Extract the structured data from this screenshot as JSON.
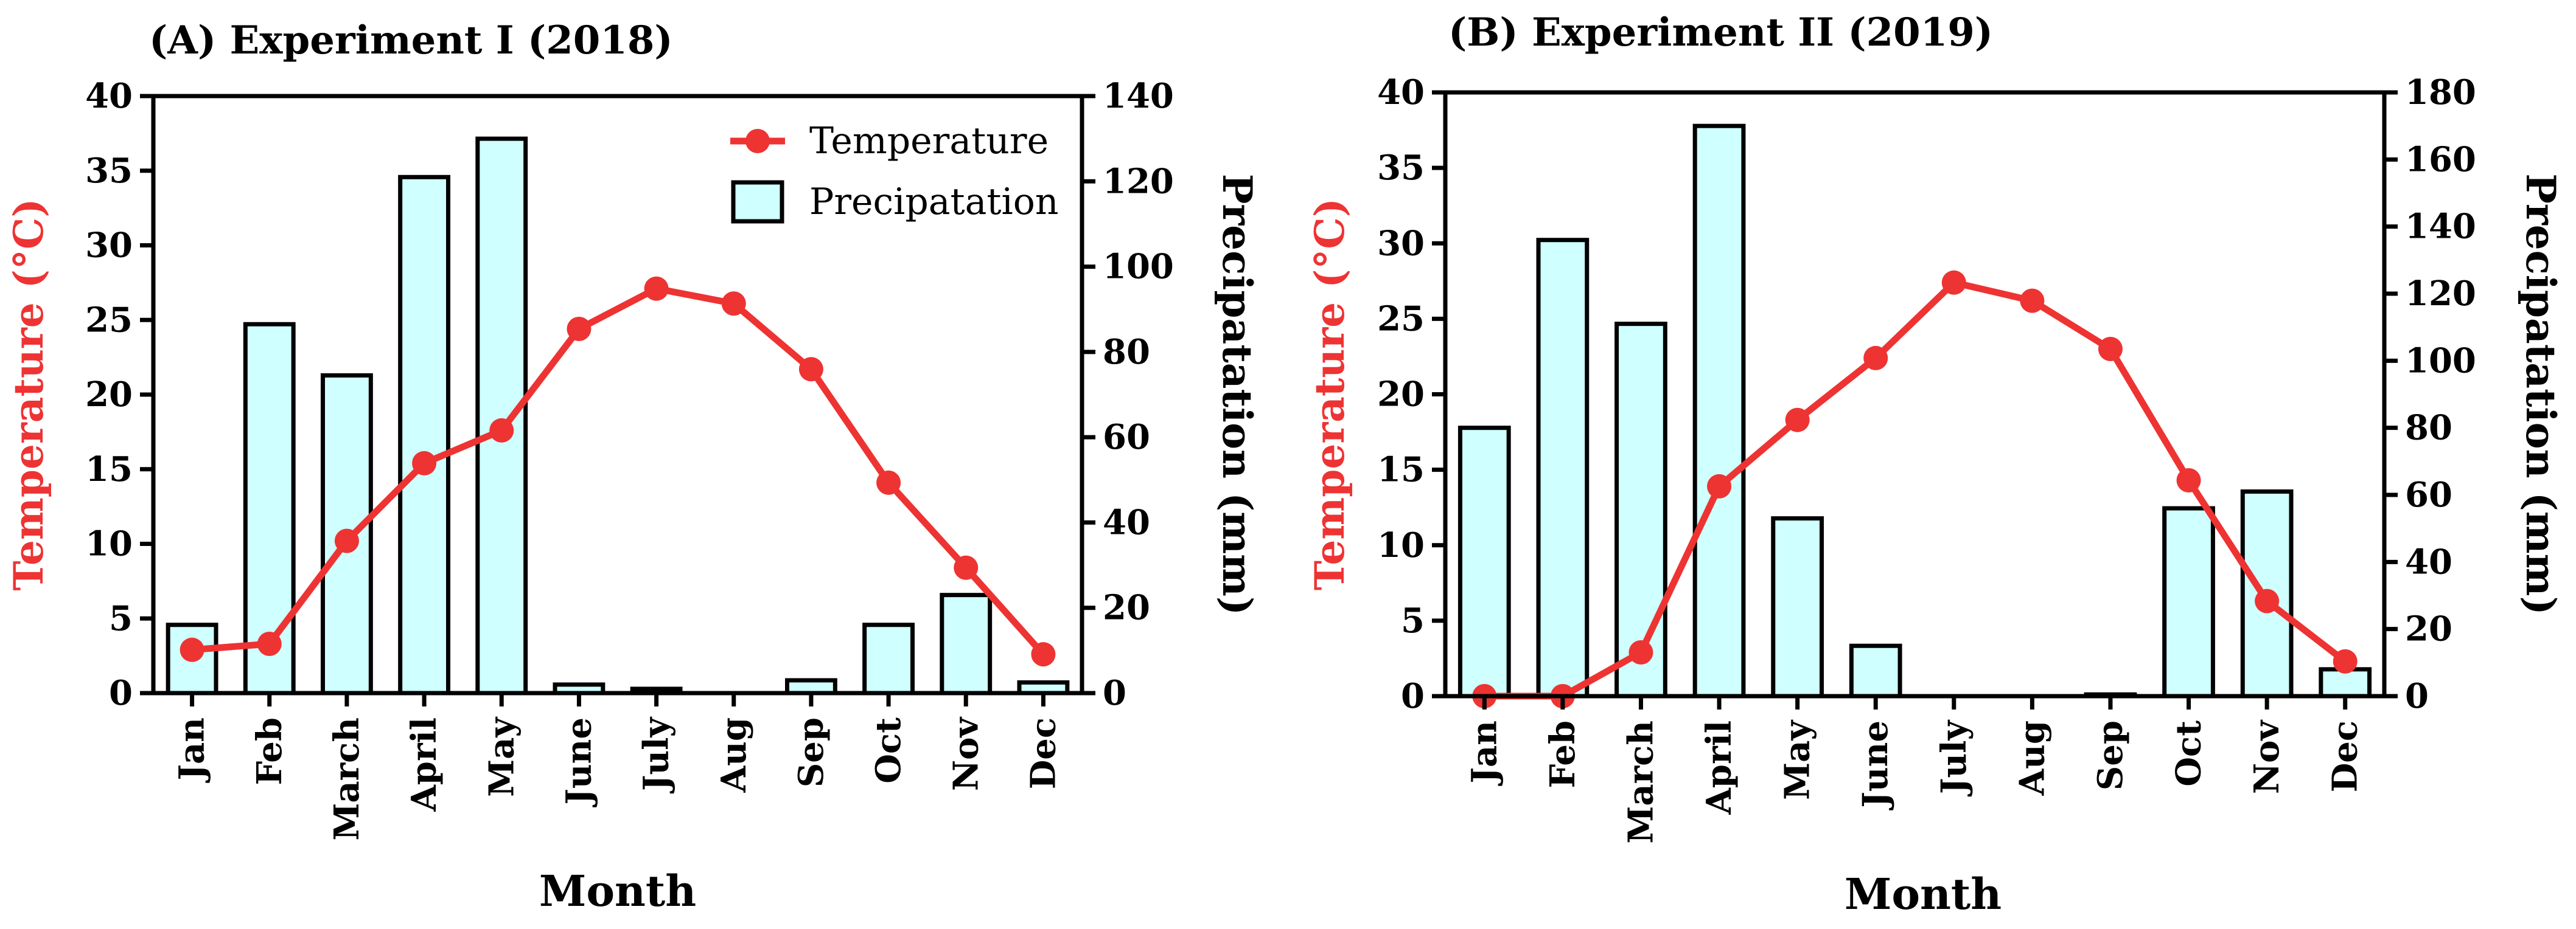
{
  "chart_data": [
    {
      "type": "bar+line",
      "title": "(A) Experiment I (2018)",
      "xlabel": "Month",
      "ylabel_left": "Temperature (°C)",
      "ylabel_right": "Precipatation (mm)",
      "categories": [
        "Jan",
        "Feb",
        "March",
        "April",
        "May",
        "June",
        "July",
        "Aug",
        "Sep",
        "Oct",
        "Nov",
        "Dec"
      ],
      "series": [
        {
          "name": "Temperature",
          "axis": "left",
          "kind": "line",
          "values": [
            2.9,
            3.3,
            10.2,
            15.4,
            17.6,
            24.4,
            27.1,
            26.1,
            21.7,
            14.1,
            8.4,
            2.6
          ]
        },
        {
          "name": "Precipatation",
          "axis": "right",
          "kind": "bar",
          "values": [
            16,
            86.5,
            74.5,
            121,
            130,
            2,
            1,
            0,
            3,
            16,
            23,
            2.5
          ]
        }
      ],
      "ylim_left": [
        0,
        40
      ],
      "yticks_left": [
        0,
        5,
        10,
        15,
        20,
        25,
        30,
        35,
        40
      ],
      "ylim_right": [
        0,
        140
      ],
      "yticks_right": [
        0,
        20,
        40,
        60,
        80,
        100,
        120,
        140
      ],
      "legend": [
        "Temperature",
        "Precipatation"
      ],
      "legend_position": "top-right",
      "colors": {
        "temperature": "#ee3333",
        "bar_fill": "#cfffff",
        "axis": "#000000"
      }
    },
    {
      "type": "bar+line",
      "title": "(B) Experiment II (2019)",
      "xlabel": "Month",
      "ylabel_left": "Temperature (°C)",
      "ylabel_right": "Precipatation (mm)",
      "categories": [
        "Jan",
        "Feb",
        "March",
        "April",
        "May",
        "June",
        "July",
        "Aug",
        "Sep",
        "Oct",
        "Nov",
        "Dec"
      ],
      "series": [
        {
          "name": "Temperature",
          "axis": "left",
          "kind": "line",
          "values": [
            0,
            0,
            2.9,
            13.9,
            18.3,
            22.4,
            27.4,
            26.2,
            23,
            14.3,
            6.3,
            2.3
          ]
        },
        {
          "name": "Precipatation",
          "axis": "right",
          "kind": "bar",
          "values": [
            80,
            136,
            111,
            170,
            53,
            15,
            0,
            0,
            0.5,
            56,
            61,
            8
          ]
        }
      ],
      "ylim_left": [
        0,
        40
      ],
      "yticks_left": [
        0,
        5,
        10,
        15,
        20,
        25,
        30,
        35,
        40
      ],
      "ylim_right": [
        0,
        180
      ],
      "yticks_right": [
        0,
        20,
        40,
        60,
        80,
        100,
        120,
        140,
        160,
        180
      ],
      "colors": {
        "temperature": "#ee3333",
        "bar_fill": "#cfffff",
        "axis": "#000000"
      }
    }
  ]
}
